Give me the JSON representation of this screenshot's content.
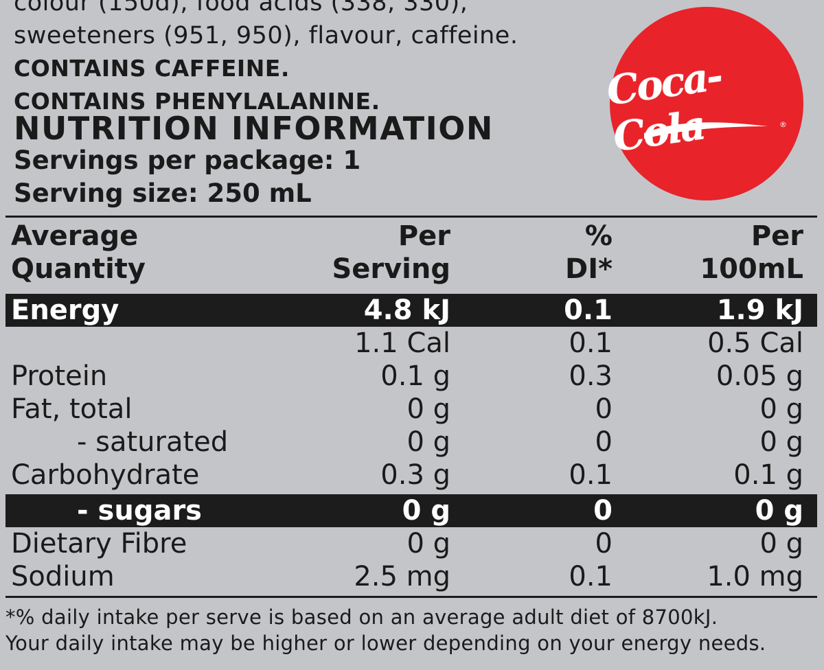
{
  "ingredients": {
    "line_top_partial": "colour (150d), food acids (338, 330),",
    "line_sweeteners": "sweeteners (951, 950), flavour, caffeine.",
    "warning_caffeine": "CONTAINS CAFFEINE.",
    "warning_phenylalanine": "CONTAINS PHENYLALANINE."
  },
  "logo": {
    "text": "Coca-Cola",
    "registered": "®",
    "color": "#e8232a"
  },
  "nutrition": {
    "title": "NUTRITION INFORMATION",
    "servings_per_package": "Servings per package: 1",
    "serving_size": "Serving size: 250 mL",
    "headers": {
      "col0_line1": "Average",
      "col0_line2": "Quantity",
      "col1_line1": "Per",
      "col1_line2": "Serving",
      "col2_line1": "%",
      "col2_line2": "DI*",
      "col3_line1": "Per",
      "col3_line2": "100mL"
    },
    "rows": [
      {
        "name": "Energy",
        "serving": "4.8 kJ",
        "di": "0.1",
        "per100": "1.9 kJ"
      },
      {
        "name": "",
        "serving": "1.1 Cal",
        "di": "0.1",
        "per100": "0.5 Cal"
      },
      {
        "name": "Protein",
        "serving": "0.1 g",
        "di": "0.3",
        "per100": "0.05 g"
      },
      {
        "name": "Fat, total",
        "serving": "0 g",
        "di": "0",
        "per100": "0 g"
      },
      {
        "name": "- saturated",
        "serving": "0 g",
        "di": "0",
        "per100": "0 g"
      },
      {
        "name": "Carbohydrate",
        "serving": "0.3 g",
        "di": "0.1",
        "per100": "0.1 g"
      },
      {
        "name": "- sugars",
        "serving": "0 g",
        "di": "0",
        "per100": "0 g"
      },
      {
        "name": "Dietary Fibre",
        "serving": "0 g",
        "di": "0",
        "per100": "0 g"
      },
      {
        "name": "Sodium",
        "serving": "2.5 mg",
        "di": "0.1",
        "per100": "1.0 mg"
      }
    ]
  },
  "footnote": {
    "line1": "*% daily intake per serve is based on an average adult diet of 8700kJ.",
    "line2": "Your daily intake may be higher or lower depending on your energy needs."
  }
}
